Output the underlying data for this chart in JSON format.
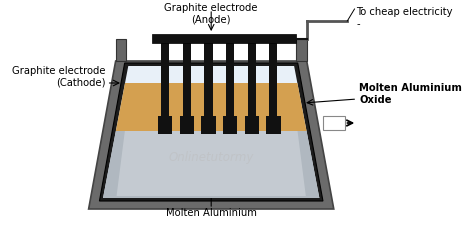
{
  "bg_color": "#ffffff",
  "outer_gray": "#6b6b6b",
  "inner_black": "#1c1c1c",
  "inner_fill": "#2a2a2a",
  "oxide_color": "#d4a050",
  "al_color": "#b0b8c0",
  "al_light": "#d8dde2",
  "electrode_color": "#111111",
  "side_tab_color": "#666666",
  "label_anode": "Graphite electrode\n(Anode)",
  "label_cathode": "Graphite electrode\n(Cathode)",
  "label_oxide": "Molten Aluminium\nOxide",
  "label_al": "Molten Aluminium",
  "label_elec": "To cheap electricity\n-",
  "watermark": "Onlinetutormy",
  "font_size": 7.2
}
